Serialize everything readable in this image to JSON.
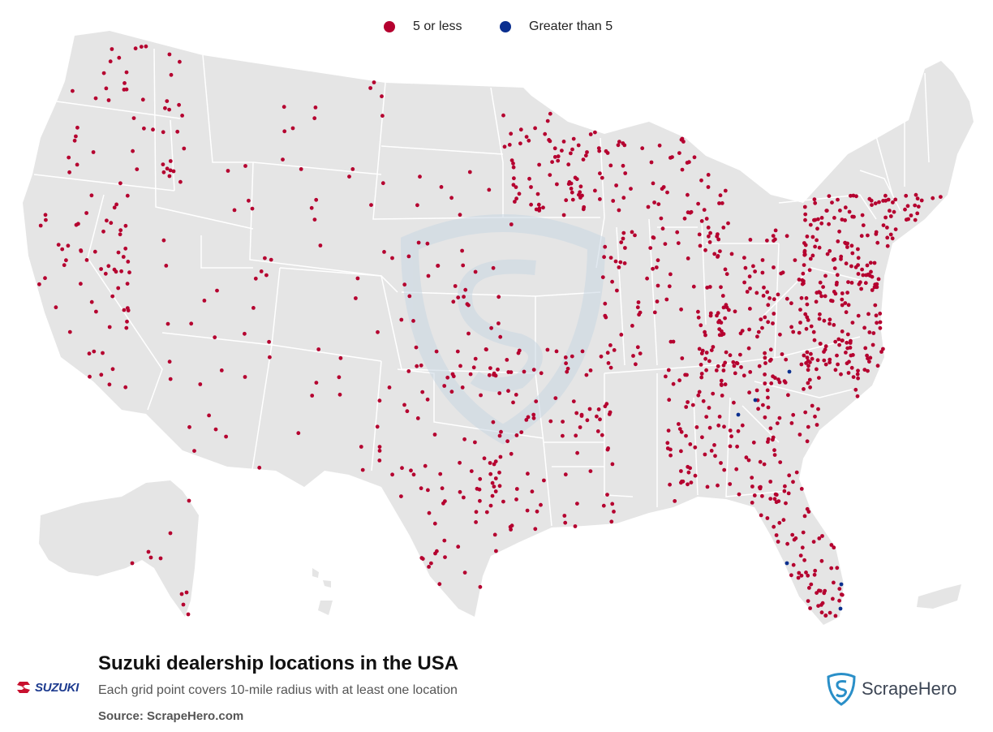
{
  "legend": {
    "items": [
      {
        "label": "5 or less",
        "color": "#b5002f"
      },
      {
        "label": "Greater than 5",
        "color": "#0a2f8f"
      }
    ]
  },
  "footer": {
    "title": "Suzuki dealership locations in the USA",
    "subtitle": "Each grid point covers 10-mile radius with at least one location",
    "source": "Source: ScrapeHero.com"
  },
  "brand": {
    "name": "SUZUKI",
    "icon": "suzuki-s-icon",
    "color": "#1d3b8f",
    "accent": "#c8102e"
  },
  "publisher": {
    "name": "ScrapeHero",
    "icon": "scrapehero-shield-icon",
    "color": "#2a8fc8"
  },
  "map": {
    "land_color": "#e5e5e5",
    "border_color": "#ffffff",
    "watermark_color": "#c9d7e3"
  }
}
